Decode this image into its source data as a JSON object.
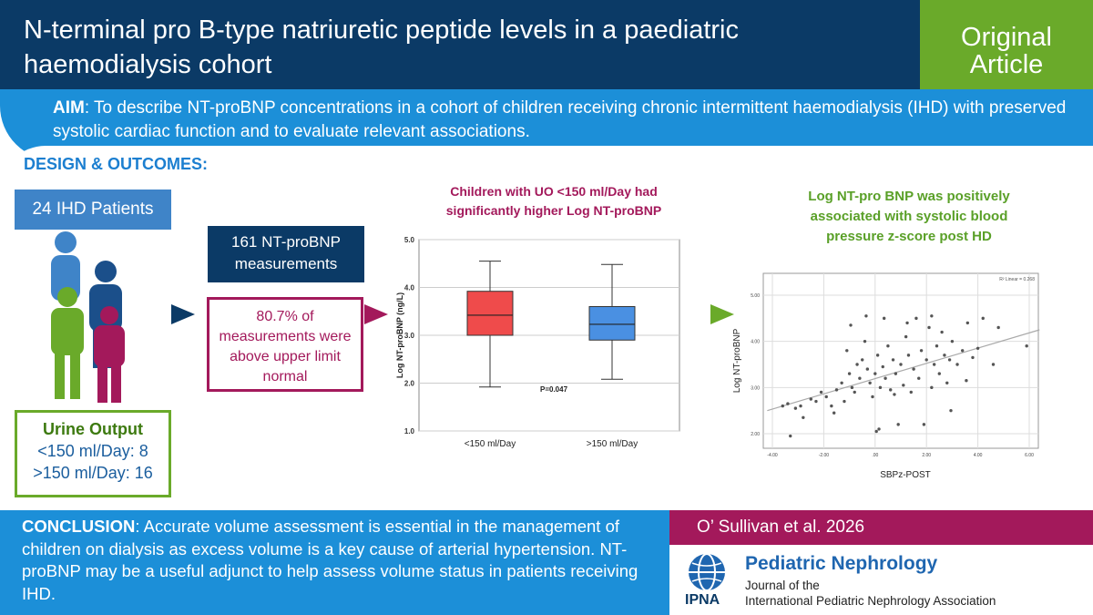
{
  "header": {
    "title": "N-terminal pro B-type natriuretic peptide levels in a paediatric haemodialysis cohort",
    "badge_line1": "Original",
    "badge_line2": "Article"
  },
  "aim": {
    "label": "AIM",
    "text": ": To describe NT-proBNP concentrations in a cohort of children receiving chronic intermittent haemodialysis (IHD) with preserved systolic cardiac function and to evaluate relevant associations."
  },
  "design": {
    "heading": "DESIGN & OUTCOMES:",
    "patients": "24 IHD Patients",
    "urine_title": "Urine Output",
    "urine_low": "<150 ml/Day: 8",
    "urine_high": ">150 ml/Day: 16",
    "measurements": "161 NT-proBNP measurements",
    "percent_text": "80.7% of measurements were above upper limit normal",
    "boxplot_title": "Children with UO <150 ml/Day had significantly higher Log NT-proBNP",
    "scatter_title": "Log NT-pro BNP was positively associated with systolic blood pressure z-score post HD"
  },
  "colors": {
    "navy": "#0b3a66",
    "blue": "#1c8fd8",
    "green": "#6aaa2a",
    "magenta": "#a3195b",
    "box_red": "#ef4b4b",
    "box_blue": "#4a90e2"
  },
  "chart_data": [
    {
      "type": "box",
      "ylabel": "Log NT-proBNP (ng/L)",
      "xlabel": "",
      "ylim": [
        1.0,
        5.0
      ],
      "yticks": [
        "1.0",
        "2.0",
        "3.0",
        "4.0",
        "5.0"
      ],
      "categories": [
        "<150 ml/Day",
        ">150 ml/Day"
      ],
      "boxes": [
        {
          "min": 1.92,
          "q1": 3.0,
          "median": 3.42,
          "q3": 3.92,
          "max": 4.55
        },
        {
          "min": 2.08,
          "q1": 2.9,
          "median": 3.23,
          "q3": 3.6,
          "max": 4.48
        }
      ],
      "annotation": "P=0.047",
      "grid": "horizontal"
    },
    {
      "type": "scatter",
      "xlabel": "SBPz-POST",
      "ylabel": "Log NT-proBNP",
      "xlim": [
        -4.0,
        6.0
      ],
      "ylim": [
        2.0,
        5.0
      ],
      "xticks": [
        "-4.00",
        "-2.00",
        ".00",
        "2.00",
        "4.00",
        "6.00"
      ],
      "yticks": [
        "2.00",
        "3.00",
        "4.00",
        "5.00"
      ],
      "legend": "R² Linear = 0.268",
      "fit_line": {
        "x0": -4.2,
        "y0": 2.5,
        "x1": 6.4,
        "y1": 4.25
      },
      "points": [
        [
          -3.3,
          1.95
        ],
        [
          -3.1,
          2.55
        ],
        [
          -3.6,
          2.6
        ],
        [
          -3.4,
          2.65
        ],
        [
          -2.9,
          2.6
        ],
        [
          -2.5,
          2.75
        ],
        [
          -2.3,
          2.7
        ],
        [
          -2.1,
          2.9
        ],
        [
          -1.9,
          2.8
        ],
        [
          -1.7,
          2.6
        ],
        [
          -1.5,
          2.95
        ],
        [
          -1.3,
          3.1
        ],
        [
          -1.2,
          2.7
        ],
        [
          -1.0,
          3.3
        ],
        [
          -0.9,
          3.0
        ],
        [
          -0.8,
          2.9
        ],
        [
          -0.7,
          3.5
        ],
        [
          -0.6,
          3.2
        ],
        [
          -0.5,
          3.6
        ],
        [
          -0.4,
          4.0
        ],
        [
          -0.3,
          3.4
        ],
        [
          -0.2,
          3.1
        ],
        [
          -0.1,
          2.8
        ],
        [
          0.0,
          3.3
        ],
        [
          0.1,
          3.7
        ],
        [
          0.15,
          2.1
        ],
        [
          0.2,
          3.0
        ],
        [
          0.3,
          3.45
        ],
        [
          0.4,
          3.2
        ],
        [
          0.5,
          3.9
        ],
        [
          0.6,
          2.95
        ],
        [
          0.7,
          3.6
        ],
        [
          0.8,
          3.3
        ],
        [
          0.9,
          2.2
        ],
        [
          1.0,
          3.5
        ],
        [
          1.1,
          3.05
        ],
        [
          1.2,
          4.1
        ],
        [
          1.3,
          3.7
        ],
        [
          1.4,
          2.9
        ],
        [
          1.5,
          3.4
        ],
        [
          1.6,
          4.5
        ],
        [
          1.7,
          3.2
        ],
        [
          1.8,
          3.8
        ],
        [
          1.9,
          2.2
        ],
        [
          2.0,
          3.6
        ],
        [
          2.1,
          4.3
        ],
        [
          2.2,
          3.0
        ],
        [
          2.3,
          3.5
        ],
        [
          2.4,
          3.9
        ],
        [
          2.5,
          3.3
        ],
        [
          2.6,
          4.2
        ],
        [
          2.7,
          3.7
        ],
        [
          2.8,
          3.1
        ],
        [
          2.9,
          3.6
        ],
        [
          3.0,
          4.0
        ],
        [
          3.2,
          3.5
        ],
        [
          3.4,
          3.8
        ],
        [
          3.6,
          4.4
        ],
        [
          3.8,
          3.65
        ],
        [
          4.0,
          3.85
        ],
        [
          4.2,
          4.5
        ],
        [
          4.6,
          3.5
        ],
        [
          4.8,
          4.3
        ],
        [
          5.9,
          3.9
        ],
        [
          -2.8,
          2.35
        ],
        [
          -1.6,
          2.45
        ],
        [
          -0.95,
          4.35
        ],
        [
          -0.35,
          4.55
        ],
        [
          0.35,
          4.5
        ],
        [
          1.25,
          4.4
        ],
        [
          2.2,
          4.55
        ],
        [
          2.95,
          2.5
        ],
        [
          3.55,
          3.15
        ],
        [
          -1.1,
          3.8
        ],
        [
          0.05,
          2.05
        ],
        [
          0.75,
          2.85
        ]
      ]
    }
  ],
  "conclusion": {
    "label": "CONCLUSION",
    "text": ": Accurate volume assessment is essential in the management of children on dialysis as excess volume is a key cause of arterial hypertension. NT-proBNP may be a useful adjunct to help assess volume status in patients receiving IHD."
  },
  "citation": "O’ Sullivan et al. 2026",
  "journal": {
    "name": "Pediatric Nephrology",
    "line1": "Journal of the",
    "line2": "International Pediatric Nephrology Association",
    "logo_text": "IPNA"
  }
}
